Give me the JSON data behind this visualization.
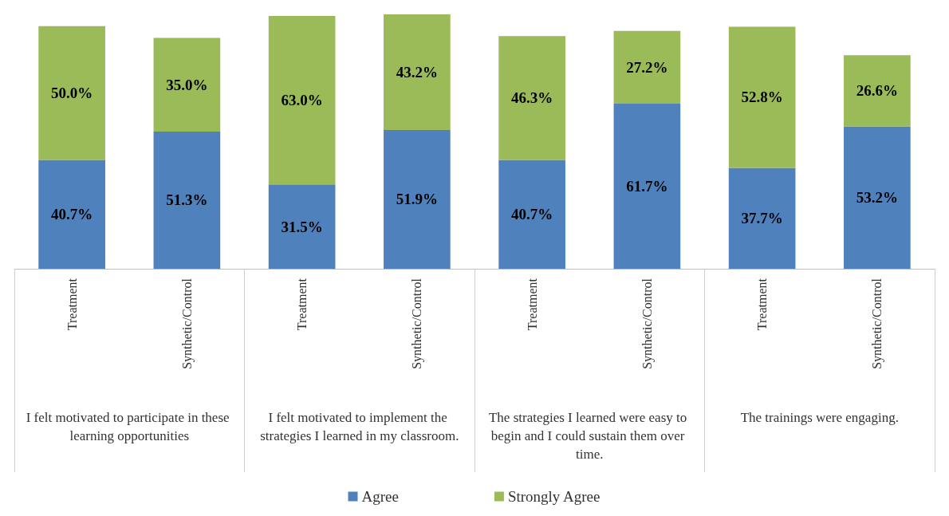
{
  "chart_data": {
    "type": "bar",
    "stacked": true,
    "categories": [
      "Treatment",
      "Synthetic/Control",
      "Treatment",
      "Synthetic/Control",
      "Treatment",
      "Synthetic/Control",
      "Treatment",
      "Synthetic/Control"
    ],
    "annotations": [
      "I felt motivated to participate in these learning opportunities",
      "I felt motivated to implement the strategies I learned in my classroom.",
      "The strategies I learned were easy to begin and I could sustain them over time.",
      "The trainings were engaging."
    ],
    "series": [
      {
        "name": "Agree",
        "color": "#4f81bd",
        "values": [
          40.7,
          51.3,
          31.5,
          51.9,
          40.7,
          61.7,
          37.7,
          53.2
        ],
        "value_labels": [
          "40.7%",
          "51.3%",
          "31.5%",
          "51.9%",
          "40.7%",
          "61.7%",
          "37.7%",
          "53.2%"
        ]
      },
      {
        "name": "Strongly Agree",
        "color": "#9bbb59",
        "values": [
          50.0,
          35.0,
          63.0,
          43.2,
          46.3,
          27.2,
          52.8,
          26.6
        ],
        "value_labels": [
          "50.0%",
          "35.0%",
          "63.0%",
          "43.2%",
          "46.3%",
          "27.2%",
          "52.8%",
          "26.6%"
        ]
      }
    ],
    "legend": "bottom"
  }
}
